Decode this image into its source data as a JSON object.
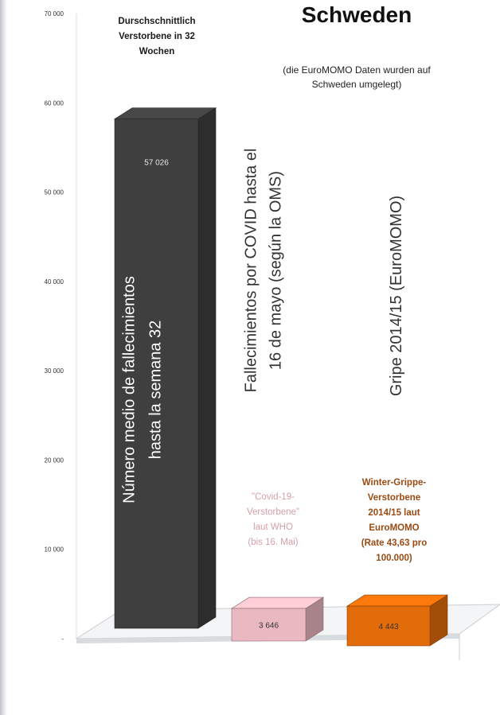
{
  "chart_data": {
    "type": "bar",
    "title": "Schweden",
    "subtitle": [
      "(die EuroMOMO Daten wurden auf",
      "Schweden umgelegt)"
    ],
    "categories": [
      "Durschschnittlich Verstorbene in 32 Wochen",
      "\"Covid-19-Verstorbene\" laut WHO (bis 16. Mai)",
      "Winter-Grippe-Verstorbene 2014/15 laut EuroMOMO (Rate 43,63 pro 100.000)"
    ],
    "values": [
      57026,
      3646,
      4443
    ],
    "data_labels": [
      "57 026",
      "3 646",
      "4 443"
    ],
    "ylim": [
      0,
      70000
    ],
    "yticks": [
      {
        "value": 0,
        "label": "-"
      },
      {
        "value": 10000,
        "label": "10 000"
      },
      {
        "value": 20000,
        "label": "20 000"
      },
      {
        "value": 30000,
        "label": "30 000"
      },
      {
        "value": 40000,
        "label": "40 000"
      },
      {
        "value": 50000,
        "label": "50 000"
      },
      {
        "value": 60000,
        "label": "60 000"
      },
      {
        "value": 70000,
        "label": "70 000"
      }
    ],
    "bar_colors": [
      "#3f3f3f",
      "#eab8c0",
      "#e36c0a"
    ],
    "annotations": [
      {
        "lines": [
          "Durschschnittlich",
          "Verstorbene in 32",
          "Wochen"
        ],
        "color": "#1a1a1a"
      },
      {
        "lines": [
          "\"Covid-19-",
          "Verstorbene\"",
          "laut WHO",
          "(bis 16. Mai)"
        ],
        "color": "#d5a0a8"
      },
      {
        "lines": [
          "Winter-Grippe-",
          "Verstorbene",
          "2014/15 laut",
          "EuroMOMO",
          "(Rate 43,63 pro",
          "100.000)"
        ],
        "color": "#9a4a12"
      }
    ],
    "vertical_labels": [
      {
        "lines": [
          "Número medio de  fallecimientos",
          "hasta la semana 32"
        ],
        "color": "#ffffff"
      },
      {
        "lines": [
          "Fallecimientos por COVID hasta  el",
          "16 de mayo (según la OMS)"
        ],
        "color": "#333333"
      },
      {
        "lines": [
          "Gripe 2014/15 (EuroMOMO)"
        ],
        "color": "#333333"
      }
    ]
  }
}
